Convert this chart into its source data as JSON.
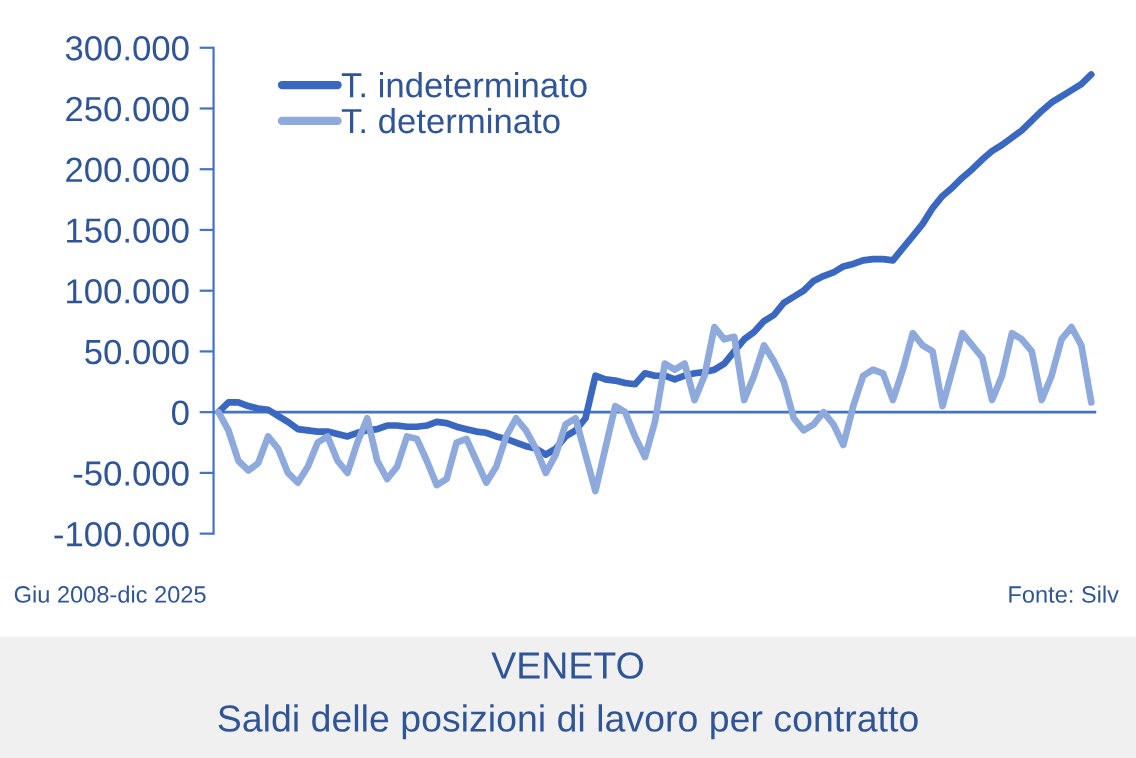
{
  "chart_data": {
    "type": "line",
    "title": "VENETO",
    "subtitle": "Saldi delle posizioni di lavoro per contratto",
    "annotations": [
      "Giu 2008-dic 2025",
      "Fonte: Silv"
    ],
    "categories": [
      null,
      null,
      null,
      null,
      null,
      null,
      null,
      null,
      null,
      null,
      null,
      null,
      null,
      null,
      null,
      null,
      null,
      null,
      null,
      null,
      null,
      null,
      null,
      null,
      null,
      null,
      null,
      null,
      null,
      null,
      null,
      null,
      null,
      null,
      null,
      null,
      null,
      null,
      null,
      null,
      null,
      null,
      null,
      null,
      null,
      null,
      null,
      null,
      null,
      null,
      null,
      null,
      null,
      null,
      null,
      null,
      null,
      null,
      null,
      null,
      null,
      null,
      null,
      null,
      null,
      null,
      null,
      null,
      null,
      null,
      null,
      null,
      null,
      null,
      null,
      null,
      null,
      null,
      null,
      null,
      null,
      null,
      null,
      null,
      null,
      null,
      null,
      null,
      null
    ],
    "series": [
      {
        "name": "T. indeterminato",
        "color": "#3a67c0",
        "values": [
          0,
          8000,
          8000,
          5000,
          3000,
          2000,
          -3000,
          -8000,
          -14000,
          -15000,
          -16000,
          -16000,
          -18000,
          -20000,
          -17000,
          -15000,
          -14000,
          -11000,
          -11000,
          -12000,
          -12000,
          -11000,
          -8000,
          -9000,
          -12000,
          -14000,
          -16000,
          -17000,
          -20000,
          -22000,
          -25000,
          -28000,
          -30000,
          -35000,
          -30000,
          -20000,
          -15000,
          -5000,
          30000,
          27000,
          26000,
          24000,
          23000,
          32000,
          30000,
          30000,
          27000,
          30000,
          32000,
          33000,
          35000,
          40000,
          50000,
          60000,
          66000,
          75000,
          80000,
          90000,
          95000,
          100000,
          108000,
          112000,
          115000,
          120000,
          122000,
          125000,
          126000,
          126000,
          125000,
          135000,
          145000,
          155000,
          168000,
          178000,
          185000,
          193000,
          200000,
          208000,
          215000,
          220000,
          226000,
          232000,
          240000,
          248000,
          255000,
          260000,
          265000,
          270000,
          278000
        ]
      },
      {
        "name": "T. determinato",
        "color": "#8eaadc",
        "values": [
          0,
          -15000,
          -40000,
          -48000,
          -42000,
          -20000,
          -30000,
          -50000,
          -58000,
          -45000,
          -25000,
          -20000,
          -40000,
          -50000,
          -25000,
          -5000,
          -40000,
          -55000,
          -45000,
          -20000,
          -22000,
          -40000,
          -60000,
          -55000,
          -25000,
          -22000,
          -40000,
          -58000,
          -45000,
          -20000,
          -5000,
          -15000,
          -30000,
          -50000,
          -35000,
          -10000,
          -5000,
          -35000,
          -65000,
          -30000,
          5000,
          0,
          -20000,
          -37000,
          -8000,
          40000,
          35000,
          40000,
          10000,
          30000,
          70000,
          60000,
          62000,
          10000,
          30000,
          55000,
          42000,
          25000,
          -5000,
          -15000,
          -10000,
          0,
          -10000,
          -27000,
          5000,
          30000,
          35000,
          32000,
          10000,
          35000,
          65000,
          55000,
          50000,
          5000,
          35000,
          65000,
          55000,
          45000,
          10000,
          30000,
          65000,
          60000,
          50000,
          10000,
          30000,
          60000,
          70000,
          55000,
          8000
        ]
      }
    ],
    "ylim": [
      -100000,
      300000
    ],
    "yticks": [
      {
        "value": -100000,
        "label": "-100.000"
      },
      {
        "value": -50000,
        "label": "-50.000"
      },
      {
        "value": 0,
        "label": "0"
      },
      {
        "value": 50000,
        "label": "50.000"
      },
      {
        "value": 100000,
        "label": "100.000"
      },
      {
        "value": 150000,
        "label": "150.000"
      },
      {
        "value": 200000,
        "label": "200.000"
      },
      {
        "value": 250000,
        "label": "250.000"
      },
      {
        "value": 300000,
        "label": "300.000"
      }
    ],
    "ref_lines": [
      {
        "axis": "y",
        "value": 0,
        "color": "#4472c4"
      }
    ],
    "tick_labels": "y",
    "grid": false,
    "legend": "top left"
  }
}
